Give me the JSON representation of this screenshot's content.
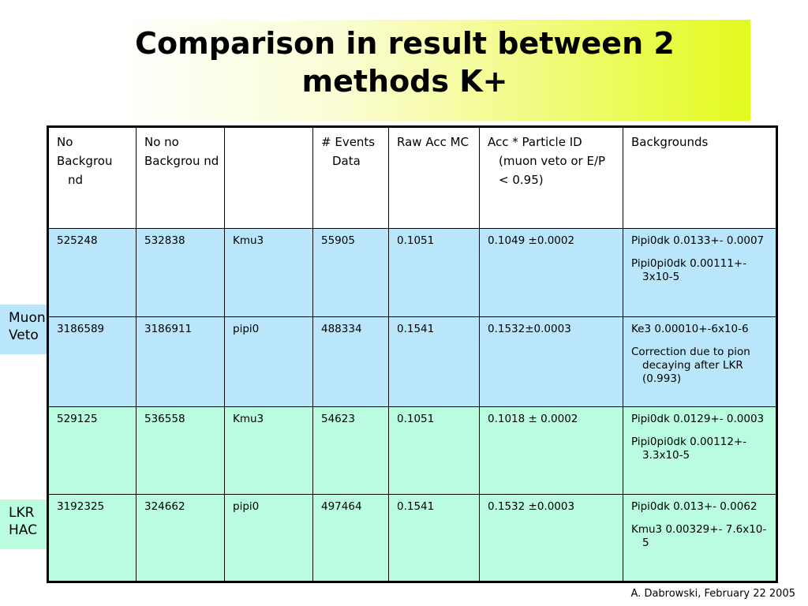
{
  "title": "Comparison in result between 2 methods K+",
  "side_labels": {
    "muon_veto": [
      "Muon",
      "Veto"
    ],
    "lkr_hac": [
      "LKR",
      "HAC"
    ]
  },
  "table": {
    "headers": [
      [
        "No",
        "Backgrou nd"
      ],
      [
        "No no",
        "Backgrou nd"
      ],
      [
        ""
      ],
      [
        "# Events Data"
      ],
      [
        "Raw Acc MC"
      ],
      [
        "Acc * Particle ID (muon veto or E/P < 0.95)"
      ],
      [
        "Backgrounds"
      ]
    ],
    "rows": [
      {
        "cells": [
          "525248",
          "532838",
          "Kmu3",
          "55905",
          "0.1051",
          "0.1049 ±0.0002"
        ],
        "backgrounds": [
          "Pipi0dk 0.0133+- 0.0007",
          "Pipi0pi0dk 0.00111+- 3x10-5"
        ]
      },
      {
        "cells": [
          "3186589",
          "3186911",
          "pipi0",
          "488334",
          "0.1541",
          "0.1532±0.0003"
        ],
        "backgrounds": [
          "Ke3 0.00010+-6x10-6",
          "Correction due to pion decaying after LKR (0.993)"
        ]
      },
      {
        "cells": [
          "529125",
          "536558",
          "Kmu3",
          "54623",
          "0.1051",
          "0.1018 ± 0.0002"
        ],
        "backgrounds": [
          "Pipi0dk 0.0129+- 0.0003",
          "Pipi0pi0dk 0.00112+- 3.3x10-5"
        ]
      },
      {
        "cells": [
          "3192325",
          "324662",
          "pipi0",
          "497464",
          "0.1541",
          "0.1532 ±0.0003"
        ],
        "backgrounds": [
          "Pipi0dk 0.013+- 0.0062",
          "Kmu3 0.00329+- 7.6x10-5"
        ]
      }
    ]
  },
  "footer": "A. Dabrowski, February 22 2005"
}
